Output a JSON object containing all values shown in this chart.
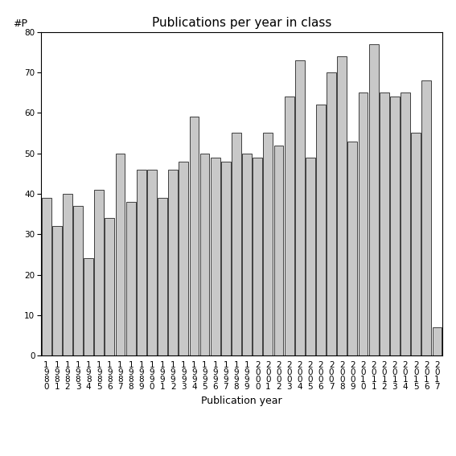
{
  "title": "Publications per year in class",
  "xlabel": "Publication year",
  "ylabel": "#P",
  "years": [
    "1980",
    "1981",
    "1982",
    "1983",
    "1984",
    "1985",
    "1986",
    "1987",
    "1988",
    "1989",
    "1990",
    "1991",
    "1992",
    "1993",
    "1994",
    "1995",
    "1996",
    "1997",
    "1998",
    "1999",
    "2000",
    "2001",
    "2002",
    "2003",
    "2004",
    "2005",
    "2006",
    "2007",
    "2008",
    "2009",
    "2010",
    "2011",
    "2012",
    "2013",
    "2014",
    "2015",
    "2016",
    "2017"
  ],
  "values": [
    39,
    32,
    40,
    37,
    24,
    41,
    34,
    50,
    38,
    46,
    46,
    39,
    46,
    48,
    59,
    50,
    49,
    48,
    55,
    50,
    49,
    55,
    52,
    64,
    73,
    49,
    62,
    70,
    74,
    53,
    65,
    77,
    65,
    64,
    65,
    55,
    68,
    7
  ],
  "bar_color": "#c8c8c8",
  "bar_edge_color": "#000000",
  "ylim": [
    0,
    80
  ],
  "yticks": [
    0,
    10,
    20,
    30,
    40,
    50,
    60,
    70,
    80
  ],
  "background_color": "#ffffff",
  "title_fontsize": 11,
  "axis_fontsize": 9,
  "tick_fontsize": 7.5
}
